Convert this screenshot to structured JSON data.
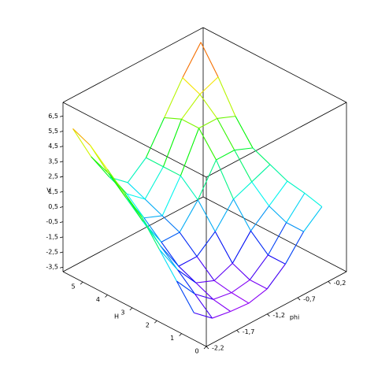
{
  "chart_data": {
    "type": "surface",
    "x_label": "phi",
    "y_label": "H",
    "z_label": "V",
    "xlim": [
      -2.2,
      0.1
    ],
    "xticks": [
      {
        "value": -2.2,
        "label": "-2,2"
      },
      {
        "value": -1.7,
        "label": "-1,7"
      },
      {
        "value": -1.2,
        "label": "-1,2"
      },
      {
        "value": -0.7,
        "label": "-0,7"
      },
      {
        "value": -0.2,
        "label": "-0,2"
      }
    ],
    "ylim": [
      0,
      5.8
    ],
    "yticks": [
      0,
      1,
      2,
      3,
      4,
      5
    ],
    "zlim": [
      -3.8,
      7.4
    ],
    "zticks": [
      {
        "value": -3.5,
        "label": "-3,5"
      },
      {
        "value": -2.5,
        "label": "-2,5"
      },
      {
        "value": -1.5,
        "label": "-1,5"
      },
      {
        "value": -0.5,
        "label": "-0,5"
      },
      {
        "value": 0.5,
        "label": "0,5"
      },
      {
        "value": 1.5,
        "label": "1,5"
      },
      {
        "value": 2.5,
        "label": "2,5"
      },
      {
        "value": 3.5,
        "label": "3,5"
      },
      {
        "value": 4.5,
        "label": "4,5"
      },
      {
        "value": 5.5,
        "label": "5,5"
      },
      {
        "value": 6.5,
        "label": "6,5"
      }
    ],
    "x": [
      -2.2,
      -1.9,
      -1.6,
      -1.3,
      -1.0,
      -0.7,
      -0.4,
      -0.1
    ],
    "y": [
      5.4,
      4.7,
      4.0,
      3.3,
      2.6,
      1.9,
      1.2,
      0.5
    ],
    "z": [
      [
        6.0,
        3.5,
        1.5,
        0.5,
        1.5,
        3.5,
        5.5,
        7.2
      ],
      [
        5.5,
        3.0,
        1.0,
        0.0,
        1.5,
        4.0,
        5.0,
        5.5
      ],
      [
        4.5,
        2.0,
        0.0,
        -0.5,
        1.5,
        4.0,
        4.0,
        3.5
      ],
      [
        3.5,
        1.0,
        -1.0,
        -1.0,
        0.5,
        2.5,
        2.5,
        2.0
      ],
      [
        2.5,
        0.0,
        -2.0,
        -2.0,
        -1.0,
        0.5,
        1.0,
        1.5
      ],
      [
        1.0,
        -1.0,
        -2.5,
        -3.0,
        -2.5,
        -1.0,
        0.0,
        1.0
      ],
      [
        -0.5,
        -2.0,
        -3.0,
        -3.2,
        -3.0,
        -2.0,
        -0.5,
        0.8
      ],
      [
        -2.0,
        -3.0,
        -3.2,
        -3.3,
        -3.0,
        -2.0,
        -0.5,
        0.5
      ]
    ]
  }
}
